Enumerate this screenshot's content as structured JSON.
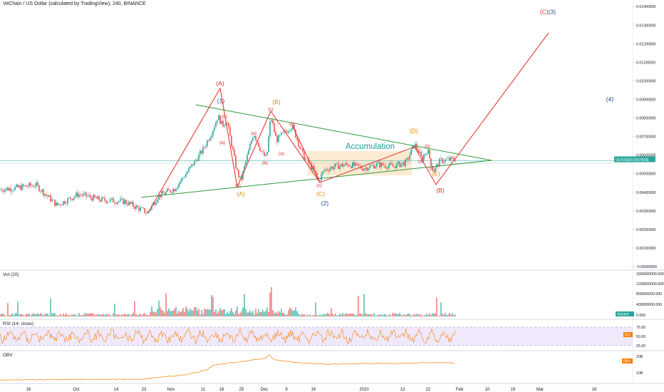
{
  "header": {
    "title": "VeChain / US Dollar (calculated by TradingView), 240, BINANCE"
  },
  "price_tag": {
    "label": "VETUSD",
    "value": "0.00579036",
    "color": "#26a69a"
  },
  "panes": {
    "volume": {
      "label": "Vol (20)",
      "tag": "Volume",
      "tag_color": "#26a69a",
      "ticks": [
        "1600000000.000",
        "1200000000.000",
        "800000000.000",
        "400000000.000",
        "0.000"
      ]
    },
    "rsi": {
      "label": "RSI (14, close)",
      "tag": "RSI",
      "tag_color": "#f57c00",
      "ticks": [
        "75.00",
        "50.00",
        "25.00"
      ]
    },
    "obv": {
      "label": "OBV",
      "tag": "OBV",
      "tag_color": "#f57c00",
      "ticks": [
        "20B",
        "10B"
      ]
    }
  },
  "chart_data": {
    "type": "line",
    "title": "VeChain / US Dollar (calculated by TradingView), 240, BINANCE",
    "y_ticks": [
      "0.01400000",
      "0.01300000",
      "0.01200000",
      "0.01100000",
      "0.01000000",
      "0.00900000",
      "0.00800000",
      "0.00700000",
      "0.00600000",
      "0.00500000",
      "0.00400000",
      "0.00300000",
      "0.00200000",
      "0.00100000",
      "-0.00000000"
    ],
    "ylim": [
      0,
      0.0142
    ],
    "x_ticks": [
      "16",
      "Oct",
      "14",
      "23",
      "Nov",
      "11",
      "18",
      "25",
      "Dec",
      "9",
      "16",
      "2020",
      "13",
      "22",
      "Feb",
      "10",
      "19",
      "Mar",
      "16"
    ],
    "price_path": [
      [
        0,
        0.00415
      ],
      [
        25,
        0.00425
      ],
      [
        50,
        0.0044
      ],
      [
        80,
        0.0033
      ],
      [
        110,
        0.0039
      ],
      [
        140,
        0.0036
      ],
      [
        175,
        0.0035
      ],
      [
        207,
        0.0029
      ],
      [
        222,
        0.0038
      ],
      [
        245,
        0.0042
      ],
      [
        265,
        0.0052
      ],
      [
        285,
        0.0063
      ],
      [
        298,
        0.0073
      ],
      [
        306,
        0.0081
      ],
      [
        312,
        0.0076
      ],
      [
        318,
        0.0079
      ],
      [
        324,
        0.0068
      ],
      [
        332,
        0.0052
      ],
      [
        338,
        0.0046
      ],
      [
        346,
        0.0058
      ],
      [
        356,
        0.0072
      ],
      [
        368,
        0.0061
      ],
      [
        374,
        0.0058
      ],
      [
        380,
        0.0081
      ],
      [
        388,
        0.0068
      ],
      [
        396,
        0.0071
      ],
      [
        410,
        0.0076
      ],
      [
        425,
        0.006
      ],
      [
        440,
        0.0052
      ],
      [
        447,
        0.0046
      ],
      [
        455,
        0.0052
      ],
      [
        470,
        0.0054
      ],
      [
        490,
        0.0055
      ],
      [
        510,
        0.0053
      ],
      [
        530,
        0.0055
      ],
      [
        550,
        0.0054
      ],
      [
        570,
        0.0056
      ],
      [
        582,
        0.0066
      ],
      [
        592,
        0.0058
      ],
      [
        600,
        0.0063
      ],
      [
        608,
        0.0051
      ],
      [
        618,
        0.0057
      ],
      [
        640,
        0.0058
      ]
    ],
    "annotations": {
      "accumulation": "Accumulation",
      "waves": [
        {
          "text": "(A)",
          "x": 309,
          "y": 0.00975,
          "color": "#d32f2f"
        },
        {
          "text": "(1)",
          "x": 310,
          "y": 0.0088,
          "color": "#1e4d8c"
        },
        {
          "text": "(B)",
          "x": 388,
          "y": 0.00875,
          "color": "#e08a00"
        },
        {
          "text": "(c)",
          "x": 380,
          "y": 0.0084,
          "color": "#d32f2f"
        },
        {
          "text": "(b)",
          "x": 315,
          "y": 0.008,
          "color": "#d32f2f"
        },
        {
          "text": "(b)",
          "x": 410,
          "y": 0.0076,
          "color": "#d32f2f"
        },
        {
          "text": "(a)",
          "x": 356,
          "y": 0.0071,
          "color": "#d32f2f"
        },
        {
          "text": "(a)",
          "x": 312,
          "y": 0.0066,
          "color": "#d32f2f"
        },
        {
          "text": "(a)",
          "x": 395,
          "y": 0.006,
          "color": "#d32f2f"
        },
        {
          "text": "(b)",
          "x": 372,
          "y": 0.0055,
          "color": "#d32f2f"
        },
        {
          "text": "(c)",
          "x": 334,
          "y": 0.0043,
          "color": "#d32f2f"
        },
        {
          "text": "(A)",
          "x": 338,
          "y": 0.0038,
          "color": "#e08a00"
        },
        {
          "text": "(c)",
          "x": 448,
          "y": 0.0043,
          "color": "#d32f2f"
        },
        {
          "text": "(C)",
          "x": 450,
          "y": 0.0038,
          "color": "#e08a00"
        },
        {
          "text": "(2)",
          "x": 456,
          "y": 0.0033,
          "color": "#1e4d8c"
        },
        {
          "text": "(D)",
          "x": 581,
          "y": 0.0072,
          "color": "#e08a00"
        },
        {
          "text": "(b)",
          "x": 600,
          "y": 0.0064,
          "color": "#d32f2f"
        },
        {
          "text": "(a)",
          "x": 591,
          "y": 0.0056,
          "color": "#d32f2f"
        },
        {
          "text": "(c)",
          "x": 606,
          "y": 0.0052,
          "color": "#d32f2f"
        },
        {
          "text": "(E)",
          "x": 612,
          "y": 0.0049,
          "color": "#e08a00"
        },
        {
          "text": "(B)",
          "x": 618,
          "y": 0.004,
          "color": "#d32f2f"
        },
        {
          "text": "(4)",
          "x": 856,
          "y": 0.0089,
          "color": "#1e4d8c"
        }
      ],
      "target_label": {
        "text": "(C)(3)",
        "x": 769,
        "y": 0.0136,
        "color": "#d32f2f"
      }
    }
  }
}
